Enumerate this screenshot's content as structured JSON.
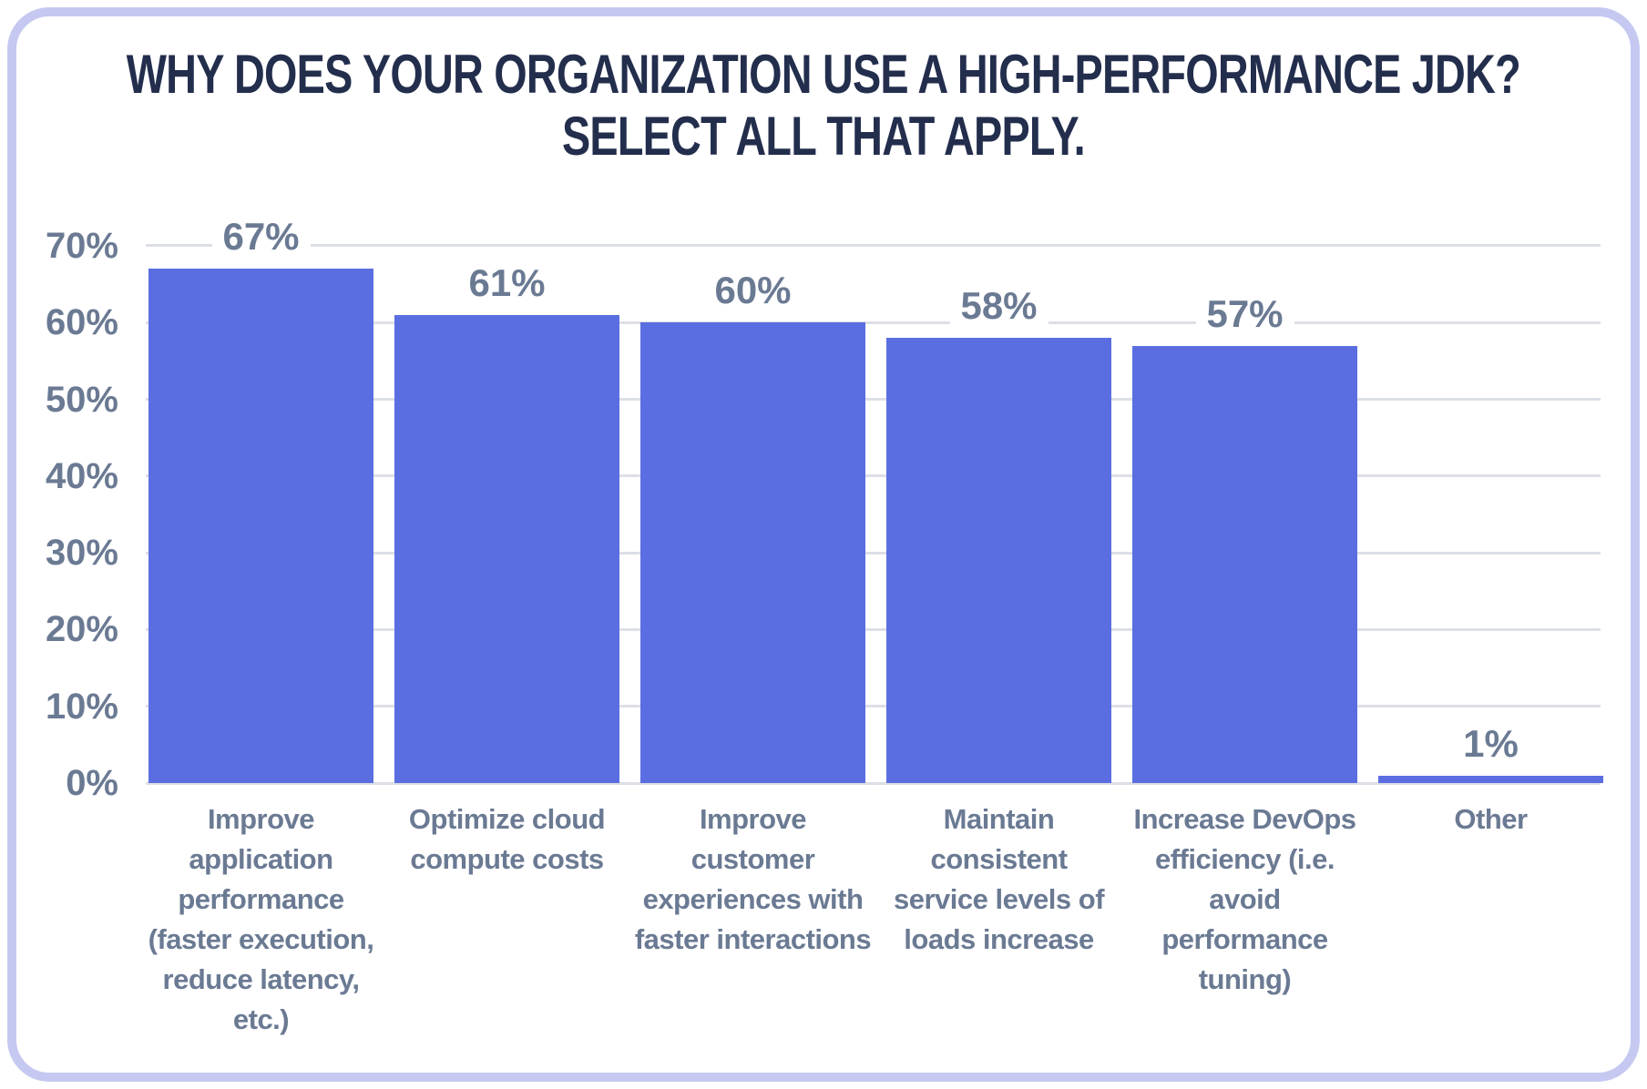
{
  "chart_data": {
    "type": "bar",
    "title": "WHY DOES YOUR ORGANIZATION USE A HIGH-PERFORMANCE JDK? SELECT ALL THAT APPLY.",
    "title_lines": [
      "WHY DOES YOUR ORGANIZATION USE A HIGH-PERFORMANCE JDK?",
      "SELECT ALL THAT APPLY."
    ],
    "categories": [
      "Improve application performance (faster execution, reduce latency, etc.)",
      "Optimize cloud compute costs",
      "Improve customer experiences with faster interactions",
      "Maintain consistent service levels of loads increase",
      "Increase DevOps efficiency (i.e. avoid performance tuning)",
      "Other"
    ],
    "category_lines": [
      [
        "Improve",
        "application",
        "performance",
        "(faster execution,",
        "reduce latency,",
        "etc.)"
      ],
      [
        "Optimize cloud",
        "compute costs"
      ],
      [
        "Improve",
        "customer",
        "experiences with",
        "faster interactions"
      ],
      [
        "Maintain",
        "consistent",
        "service levels of",
        "loads increase"
      ],
      [
        "Increase DevOps",
        "efficiency (i.e.",
        "avoid",
        "performance",
        "tuning)"
      ],
      [
        "Other"
      ]
    ],
    "values": [
      67,
      61,
      60,
      58,
      57,
      1
    ],
    "value_labels": [
      "67%",
      "61%",
      "60%",
      "58%",
      "57%",
      "1%"
    ],
    "y_ticks": [
      "0%",
      "10%",
      "20%",
      "30%",
      "40%",
      "50%",
      "60%",
      "70%"
    ],
    "xlabel": "",
    "ylabel": "",
    "ylim": [
      0,
      70
    ],
    "grid": "horizontal",
    "legend": "none",
    "colors": {
      "bar": "#5b6ee1",
      "title_text": "#232e4d",
      "axis_text": "#6b7a93",
      "gridline": "#dcdfe6",
      "card_border": "#c5c9f1",
      "background": "#ffffff"
    }
  }
}
